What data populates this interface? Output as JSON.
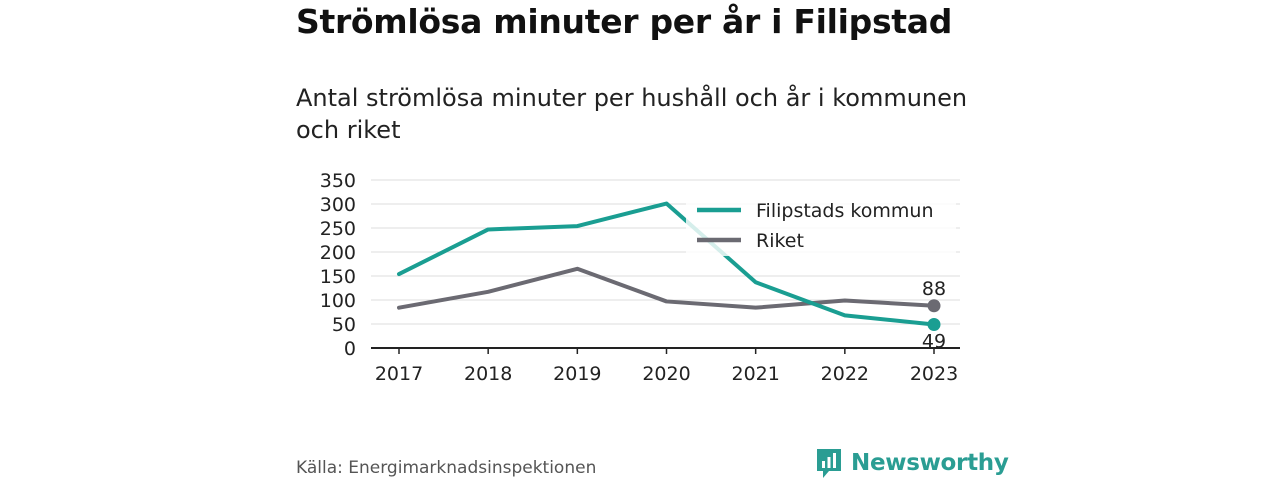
{
  "title": "Strömlösa minuter per år i Filipstad",
  "subtitle": "Antal strömlösa minuter per hushåll och år i kommunen och riket",
  "source": "Källa: Energimarknadsinspektionen",
  "brand": {
    "name": "Newsworthy",
    "icon": "bar-chart-logo-icon",
    "color": "#2a9d93"
  },
  "chart_data": {
    "type": "line",
    "x": [
      "2017",
      "2018",
      "2019",
      "2020",
      "2021",
      "2022",
      "2023"
    ],
    "series": [
      {
        "name": "Filipstads kommun",
        "color": "#1a9e92",
        "values": [
          154,
          247,
          254,
          301,
          137,
          68,
          49
        ],
        "end_label": "49"
      },
      {
        "name": "Riket",
        "color": "#6b6a72",
        "values": [
          84,
          117,
          165,
          97,
          84,
          99,
          88
        ],
        "end_label": "88"
      }
    ],
    "yticks": [
      0,
      50,
      100,
      150,
      200,
      250,
      300,
      350
    ],
    "ylim": [
      0,
      350
    ],
    "grid": true,
    "legend": "top-right"
  }
}
